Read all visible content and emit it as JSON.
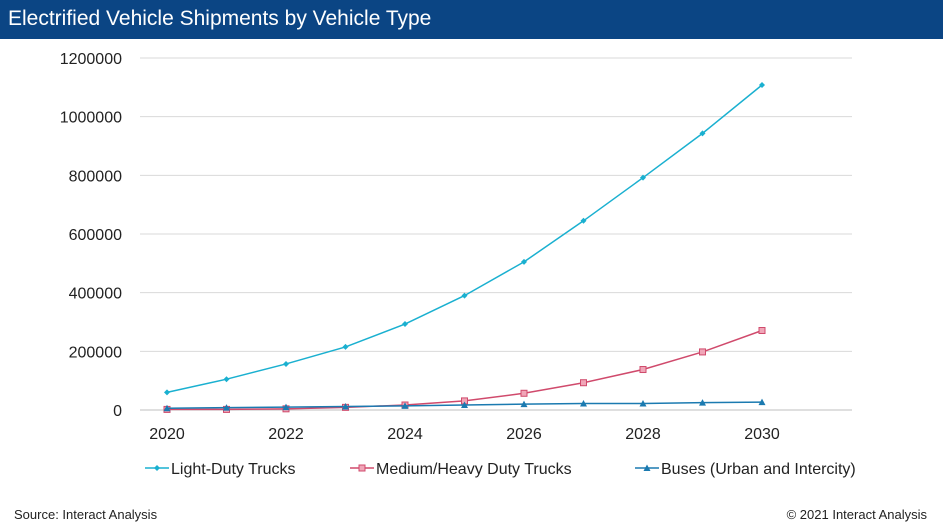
{
  "header": {
    "title": "Electrified Vehicle Shipments by Vehicle Type"
  },
  "footer": {
    "source": "Source: Interact Analysis",
    "copyright": "© 2021 Interact Analysis"
  },
  "colors": {
    "header_bg": "#0b4584",
    "grid": "#d9d9d9"
  },
  "chart_data": {
    "type": "line",
    "title": "",
    "xlabel": "",
    "ylabel": "",
    "x": [
      2020,
      2021,
      2022,
      2023,
      2024,
      2025,
      2026,
      2027,
      2028,
      2029,
      2030
    ],
    "xlim": [
      2020,
      2031.5
    ],
    "x_ticks": [
      "2020",
      "2022",
      "2024",
      "2026",
      "2028",
      "2030"
    ],
    "ylim": [
      0,
      1200000
    ],
    "y_ticks": [
      "0",
      "200000",
      "400000",
      "600000",
      "800000",
      "1000000",
      "1200000"
    ],
    "grid": "horizontal",
    "legend_position": "bottom",
    "series": [
      {
        "name": "Light-Duty Trucks",
        "color": "#1ab0d0",
        "marker": "diamond",
        "values": [
          60000,
          105000,
          157000,
          215000,
          293000,
          390000,
          505000,
          645000,
          792000,
          943000,
          1108000
        ]
      },
      {
        "name": "Medium/Heavy Duty Trucks",
        "color": "#d04a6c",
        "marker": "square",
        "values": [
          2000,
          2000,
          4000,
          9000,
          17000,
          31000,
          57000,
          93000,
          138000,
          198000,
          271000
        ]
      },
      {
        "name": "Buses (Urban and Intercity)",
        "color": "#1b7ab0",
        "marker": "triangle",
        "values": [
          6000,
          8000,
          10000,
          12000,
          14000,
          17000,
          20000,
          22000,
          22000,
          25000,
          27000
        ]
      }
    ]
  }
}
